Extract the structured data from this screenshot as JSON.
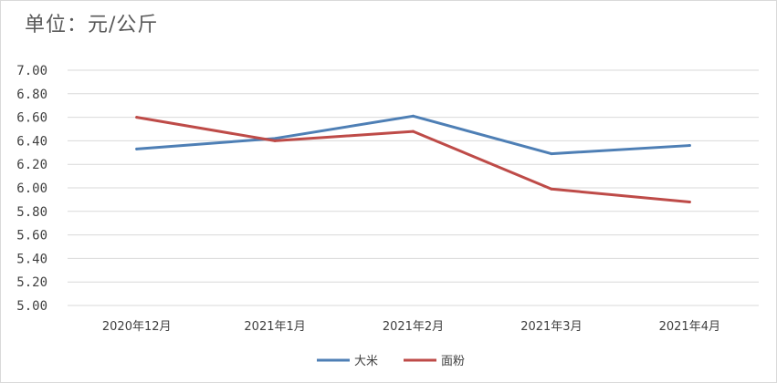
{
  "unit_label": "单位：元/公斤",
  "chart_data": {
    "type": "line",
    "title": "",
    "xlabel": "",
    "ylabel": "",
    "categories": [
      "2020年12月",
      "2021年1月",
      "2021年2月",
      "2021年3月",
      "2021年4月"
    ],
    "ylim": [
      5.0,
      7.0
    ],
    "yticks": [
      "7.00",
      "6.80",
      "6.60",
      "6.40",
      "6.20",
      "6.00",
      "5.80",
      "5.60",
      "5.40",
      "5.20",
      "5.00"
    ],
    "grid": true,
    "legend_position": "bottom-center",
    "series": [
      {
        "name": "大米",
        "color": "#4e7fb5",
        "values": [
          6.33,
          6.42,
          6.61,
          6.29,
          6.36
        ]
      },
      {
        "name": "面粉",
        "color": "#be4b48",
        "values": [
          6.6,
          6.4,
          6.48,
          5.99,
          5.88
        ]
      }
    ]
  }
}
